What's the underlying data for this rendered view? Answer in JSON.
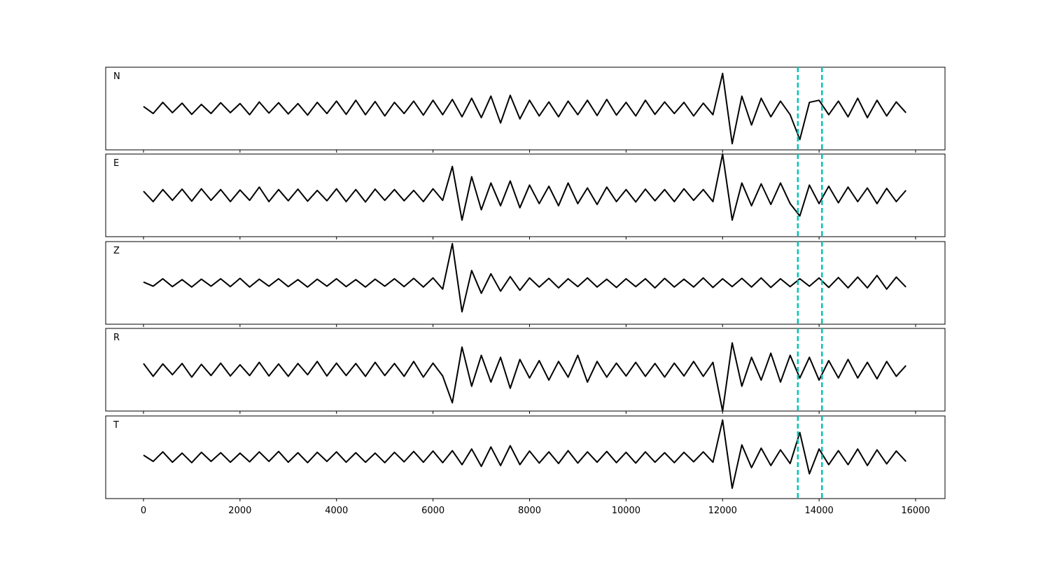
{
  "chart_data": {
    "type": "line",
    "subplots": true,
    "x": [
      0,
      200,
      400,
      600,
      800,
      1000,
      1200,
      1400,
      1600,
      1800,
      2000,
      2200,
      2400,
      2600,
      2800,
      3000,
      3200,
      3400,
      3600,
      3800,
      4000,
      4200,
      4400,
      4600,
      4800,
      5000,
      5200,
      5400,
      5600,
      5800,
      6000,
      6200,
      6400,
      6600,
      6800,
      7000,
      7200,
      7400,
      7600,
      7800,
      8000,
      8200,
      8400,
      8600,
      8800,
      9000,
      9200,
      9400,
      9600,
      9800,
      10000,
      10200,
      10400,
      10600,
      10800,
      11000,
      11200,
      11400,
      11600,
      11800,
      12000,
      12200,
      12400,
      12600,
      12800,
      13000,
      13200,
      13400,
      13600,
      13800,
      14000,
      14200,
      14400,
      14600,
      14800,
      15000,
      15200,
      15400,
      15600,
      15800
    ],
    "series": [
      {
        "name": "N",
        "color": "#000000",
        "values": [
          0.05,
          -0.12,
          0.15,
          -0.1,
          0.13,
          -0.14,
          0.1,
          -0.12,
          0.14,
          -0.1,
          0.12,
          -0.15,
          0.16,
          -0.11,
          0.14,
          -0.13,
          0.12,
          -0.16,
          0.15,
          -0.12,
          0.18,
          -0.14,
          0.2,
          -0.15,
          0.17,
          -0.18,
          0.15,
          -0.12,
          0.18,
          -0.16,
          0.2,
          -0.15,
          0.22,
          -0.2,
          0.25,
          -0.22,
          0.3,
          -0.35,
          0.32,
          -0.25,
          0.2,
          -0.18,
          0.16,
          -0.2,
          0.18,
          -0.15,
          0.2,
          -0.17,
          0.22,
          -0.16,
          0.15,
          -0.18,
          0.2,
          -0.14,
          0.16,
          -0.12,
          0.15,
          -0.18,
          0.13,
          -0.15,
          0.85,
          -0.85,
          0.3,
          -0.4,
          0.25,
          -0.2,
          0.18,
          -0.15,
          -0.75,
          0.15,
          0.2,
          -0.15,
          0.18,
          -0.2,
          0.25,
          -0.22,
          0.2,
          -0.18,
          0.16,
          -0.1
        ]
      },
      {
        "name": "E",
        "color": "#000000",
        "values": [
          0.1,
          -0.15,
          0.14,
          -0.12,
          0.15,
          -0.14,
          0.16,
          -0.12,
          0.14,
          -0.15,
          0.13,
          -0.12,
          0.2,
          -0.15,
          0.14,
          -0.13,
          0.15,
          -0.14,
          0.12,
          -0.13,
          0.16,
          -0.15,
          0.14,
          -0.16,
          0.15,
          -0.12,
          0.14,
          -0.13,
          0.12,
          -0.15,
          0.16,
          -0.12,
          0.7,
          -0.6,
          0.45,
          -0.35,
          0.3,
          -0.25,
          0.35,
          -0.3,
          0.25,
          -0.2,
          0.22,
          -0.25,
          0.3,
          -0.2,
          0.18,
          -0.22,
          0.2,
          -0.15,
          0.14,
          -0.16,
          0.15,
          -0.13,
          0.14,
          -0.15,
          0.16,
          -0.12,
          0.14,
          -0.15,
          1.0,
          -0.6,
          0.3,
          -0.25,
          0.28,
          -0.22,
          0.3,
          -0.2,
          -0.5,
          0.25,
          -0.2,
          0.22,
          -0.18,
          0.2,
          -0.15,
          0.18,
          -0.2,
          0.17,
          -0.15,
          0.12
        ]
      },
      {
        "name": "Z",
        "color": "#000000",
        "values": [
          0.02,
          -0.08,
          0.1,
          -0.09,
          0.08,
          -0.1,
          0.09,
          -0.08,
          0.1,
          -0.09,
          0.11,
          -0.1,
          0.09,
          -0.08,
          0.1,
          -0.09,
          0.08,
          -0.1,
          0.09,
          -0.08,
          0.1,
          -0.09,
          0.08,
          -0.1,
          0.09,
          -0.08,
          0.1,
          -0.09,
          0.11,
          -0.1,
          0.12,
          -0.15,
          0.95,
          -0.7,
          0.3,
          -0.25,
          0.22,
          -0.2,
          0.15,
          -0.18,
          0.12,
          -0.1,
          0.11,
          -0.12,
          0.1,
          -0.09,
          0.12,
          -0.1,
          0.09,
          -0.11,
          0.1,
          -0.09,
          0.1,
          -0.12,
          0.11,
          -0.1,
          0.09,
          -0.1,
          0.12,
          -0.11,
          0.1,
          -0.09,
          0.11,
          -0.1,
          0.12,
          -0.11,
          0.1,
          -0.09,
          0.1,
          -0.08,
          0.12,
          -0.11,
          0.13,
          -0.12,
          0.14,
          -0.12,
          0.18,
          -0.15,
          0.14,
          -0.1
        ]
      },
      {
        "name": "R",
        "color": "#000000",
        "values": [
          0.15,
          -0.16,
          0.14,
          -0.12,
          0.15,
          -0.18,
          0.13,
          -0.14,
          0.16,
          -0.15,
          0.12,
          -0.14,
          0.18,
          -0.15,
          0.14,
          -0.16,
          0.15,
          -0.12,
          0.2,
          -0.15,
          0.16,
          -0.14,
          0.15,
          -0.16,
          0.18,
          -0.14,
          0.15,
          -0.16,
          0.2,
          -0.18,
          0.16,
          -0.15,
          -0.8,
          0.55,
          -0.4,
          0.35,
          -0.3,
          0.3,
          -0.45,
          0.25,
          -0.2,
          0.22,
          -0.25,
          0.2,
          -0.18,
          0.35,
          -0.3,
          0.2,
          -0.18,
          0.16,
          -0.15,
          0.18,
          -0.16,
          0.15,
          -0.18,
          0.16,
          -0.15,
          0.2,
          -0.16,
          0.18,
          -1.0,
          0.65,
          -0.4,
          0.3,
          -0.25,
          0.4,
          -0.3,
          0.35,
          -0.2,
          0.3,
          -0.25,
          0.22,
          -0.2,
          0.25,
          -0.2,
          0.18,
          -0.22,
          0.2,
          -0.16,
          0.1
        ]
      },
      {
        "name": "T",
        "color": "#000000",
        "values": [
          0.05,
          -0.1,
          0.13,
          -0.12,
          0.1,
          -0.13,
          0.12,
          -0.1,
          0.11,
          -0.12,
          0.1,
          -0.11,
          0.13,
          -0.1,
          0.14,
          -0.12,
          0.11,
          -0.13,
          0.12,
          -0.1,
          0.13,
          -0.12,
          0.11,
          -0.12,
          0.1,
          -0.13,
          0.12,
          -0.11,
          0.14,
          -0.12,
          0.15,
          -0.13,
          0.16,
          -0.18,
          0.2,
          -0.22,
          0.25,
          -0.2,
          0.28,
          -0.18,
          0.15,
          -0.14,
          0.13,
          -0.15,
          0.16,
          -0.14,
          0.13,
          -0.12,
          0.14,
          -0.13,
          0.12,
          -0.14,
          0.13,
          -0.12,
          0.11,
          -0.13,
          0.12,
          -0.11,
          0.13,
          -0.12,
          0.9,
          -0.75,
          0.3,
          -0.25,
          0.22,
          -0.2,
          0.18,
          -0.15,
          0.6,
          -0.4,
          0.2,
          -0.18,
          0.16,
          -0.18,
          0.2,
          -0.2,
          0.18,
          -0.16,
          0.15,
          -0.1
        ]
      }
    ],
    "vlines": [
      {
        "value": 13560,
        "color": "#00c5b5"
      },
      {
        "value": 14060,
        "color": "#00c5b5"
      }
    ],
    "xlim": [
      -783,
      16609
    ],
    "xticks": [
      0,
      2000,
      4000,
      6000,
      8000,
      10000,
      12000,
      14000,
      16000
    ],
    "ylim": [
      -1,
      1
    ]
  }
}
